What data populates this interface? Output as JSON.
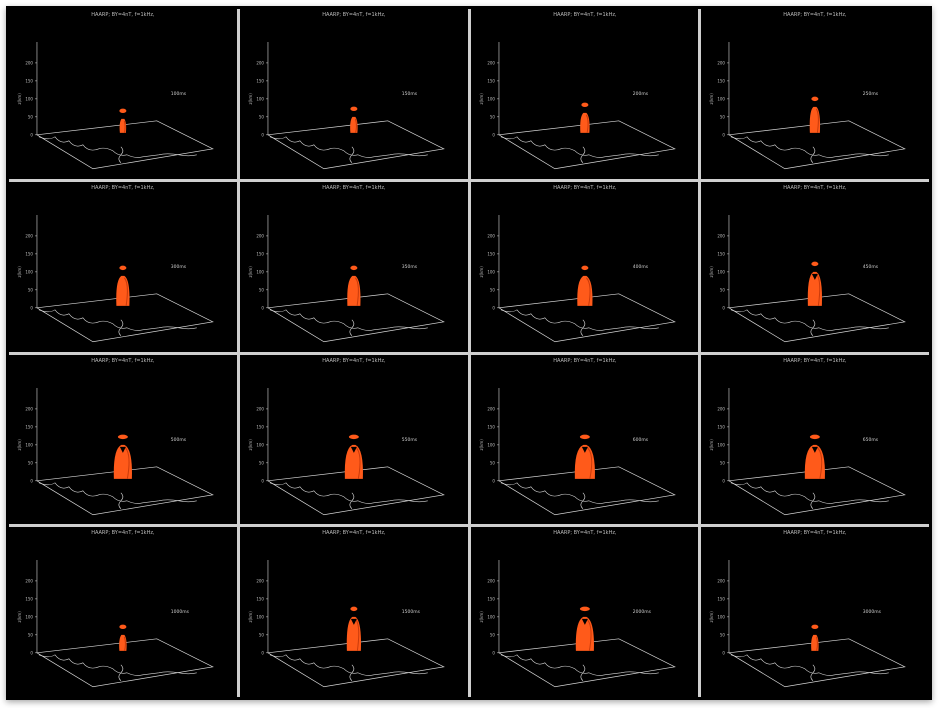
{
  "panels": [
    {
      "title": "HAARP; BY=4nT, f=1kHz,",
      "time": "100ms",
      "stage": 1
    },
    {
      "title": "HAARP; BY=4nT, f=1kHz,",
      "time": "150ms",
      "stage": 2
    },
    {
      "title": "HAARP; BY=4nT, f=1kHz,",
      "time": "200ms",
      "stage": 3
    },
    {
      "title": "HAARP; BY=4nT, f=1kHz,",
      "time": "250ms",
      "stage": 4
    },
    {
      "title": "HAARP; BY=4nT, f=1kHz,",
      "time": "300ms",
      "stage": 5
    },
    {
      "title": "HAARP; BY=4nT, f=1kHz,",
      "time": "350ms",
      "stage": 5
    },
    {
      "title": "HAARP; BY=4nT, f=1kHz,",
      "time": "400ms",
      "stage": 6
    },
    {
      "title": "HAARP; BY=4nT, f=1kHz,",
      "time": "450ms",
      "stage": 7
    },
    {
      "title": "HAARP; BY=4nT, f=1kHz,",
      "time": "500ms",
      "stage": 8
    },
    {
      "title": "HAARP; BY=4nT, f=1kHz,",
      "time": "550ms",
      "stage": 8
    },
    {
      "title": "HAARP; BY=4nT, f=1kHz,",
      "time": "600ms",
      "stage": 9
    },
    {
      "title": "HAARP; BY=4nT, f=1kHz,",
      "time": "650ms",
      "stage": 9
    },
    {
      "title": "HAARP; BY=4nT, f=1kHz,",
      "time": "1000ms",
      "stage": 2
    },
    {
      "title": "HAARP; BY=4nT, f=1kHz,",
      "time": "1500ms",
      "stage": 7
    },
    {
      "title": "HAARP; BY=4nT, f=1kHz,",
      "time": "2000ms",
      "stage": 8
    },
    {
      "title": "HAARP; BY=4nT, f=1kHz,",
      "time": "3000ms",
      "stage": 2
    }
  ],
  "z_axis": {
    "label": "z(km)",
    "ticks": [
      "0",
      "50",
      "100",
      "150",
      "200"
    ]
  },
  "colors": {
    "plume": "#ff5a1a",
    "plume_dark": "#c93a0a",
    "axes": "#d8d8d8",
    "background": "#000000"
  }
}
